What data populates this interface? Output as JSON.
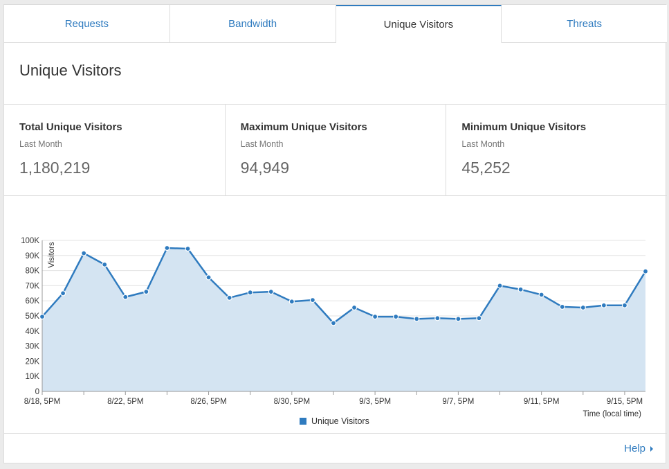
{
  "tabs": [
    {
      "label": "Requests",
      "active": false
    },
    {
      "label": "Bandwidth",
      "active": false
    },
    {
      "label": "Unique Visitors",
      "active": true
    },
    {
      "label": "Threats",
      "active": false
    }
  ],
  "page_title": "Unique Visitors",
  "stats": [
    {
      "label": "Total Unique Visitors",
      "sub": "Last Month",
      "value": "1,180,219"
    },
    {
      "label": "Maximum Unique Visitors",
      "sub": "Last Month",
      "value": "94,949"
    },
    {
      "label": "Minimum Unique Visitors",
      "sub": "Last Month",
      "value": "45,252"
    }
  ],
  "chart_data": {
    "type": "area",
    "ylabel": "Visitors",
    "xlabel": "Time (local time)",
    "ylim": [
      0,
      100000
    ],
    "y_ticks": [
      "0",
      "10K",
      "20K",
      "30K",
      "40K",
      "50K",
      "60K",
      "70K",
      "80K",
      "90K",
      "100K"
    ],
    "x_tick_labels": [
      "8/18, 5PM",
      "8/22, 5PM",
      "8/26, 5PM",
      "8/30, 5PM",
      "9/3, 5PM",
      "9/7, 5PM",
      "9/11, 5PM",
      "9/15, 5PM"
    ],
    "grid": true,
    "legend_position": "bottom-center",
    "series": [
      {
        "name": "Unique Visitors",
        "color": "#2f7bbf",
        "x": [
          "8/18, 5PM",
          "8/19, 5PM",
          "8/20, 5PM",
          "8/21, 5PM",
          "8/22, 5PM",
          "8/23, 5PM",
          "8/24, 5PM",
          "8/25, 5PM",
          "8/26, 5PM",
          "8/27, 5PM",
          "8/28, 5PM",
          "8/29, 5PM",
          "8/30, 5PM",
          "8/31, 5PM",
          "9/1, 5PM",
          "9/2, 5PM",
          "9/3, 5PM",
          "9/4, 5PM",
          "9/5, 5PM",
          "9/6, 5PM",
          "9/7, 5PM",
          "9/8, 5PM",
          "9/9, 5PM",
          "9/10, 5PM",
          "9/11, 5PM",
          "9/12, 5PM",
          "9/13, 5PM",
          "9/14, 5PM",
          "9/15, 5PM",
          "9/16, 5PM"
        ],
        "values": [
          49500,
          65000,
          91500,
          84000,
          62500,
          66000,
          94949,
          94500,
          75500,
          62000,
          65500,
          66000,
          59500,
          60500,
          45252,
          55500,
          49500,
          49500,
          48000,
          48500,
          48000,
          48500,
          70000,
          67500,
          64000,
          56000,
          55500,
          57000,
          57000,
          79500
        ]
      }
    ]
  },
  "legend_label": "Unique Visitors",
  "help_label": "Help"
}
